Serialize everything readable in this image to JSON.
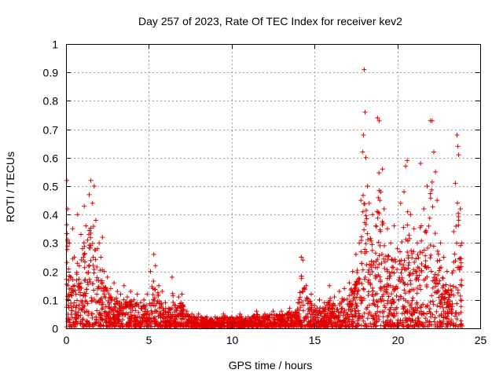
{
  "chart_data": {
    "type": "scatter",
    "title": "Day 257 of 2023, Rate Of TEC Index for receiver kev2",
    "xlabel": "GPS time / hours",
    "ylabel": "ROTI / TECUs",
    "xlim": [
      0,
      25
    ],
    "ylim": [
      0,
      1
    ],
    "xticks": [
      "0",
      "5",
      "10",
      "15",
      "20",
      "25"
    ],
    "yticks": [
      "0",
      "0.1",
      "0.2",
      "0.3",
      "0.4",
      "0.5",
      "0.6",
      "0.7",
      "0.8",
      "0.9",
      "1"
    ],
    "grid": true,
    "marker": "+",
    "series": [
      {
        "name": "kev2",
        "color": "#e00000",
        "points": [
          [
            0.05,
            0.52
          ],
          [
            0.1,
            0.42
          ],
          [
            0.2,
            0.3
          ],
          [
            0.3,
            0.18
          ],
          [
            0.4,
            0.35
          ],
          [
            0.5,
            0.25
          ],
          [
            0.6,
            0.12
          ],
          [
            0.7,
            0.4
          ],
          [
            0.8,
            0.22
          ],
          [
            0.9,
            0.33
          ],
          [
            1.0,
            0.28
          ],
          [
            1.1,
            0.43
          ],
          [
            1.2,
            0.36
          ],
          [
            1.3,
            0.31
          ],
          [
            1.4,
            0.47
          ],
          [
            1.5,
            0.52
          ],
          [
            1.6,
            0.44
          ],
          [
            1.7,
            0.5
          ],
          [
            1.8,
            0.38
          ],
          [
            1.9,
            0.28
          ],
          [
            2.0,
            0.3
          ],
          [
            2.1,
            0.25
          ],
          [
            2.2,
            0.32
          ],
          [
            2.3,
            0.2
          ],
          [
            2.5,
            0.18
          ],
          [
            2.7,
            0.14
          ],
          [
            2.9,
            0.16
          ],
          [
            3.1,
            0.13
          ],
          [
            3.3,
            0.12
          ],
          [
            3.5,
            0.15
          ],
          [
            3.7,
            0.11
          ],
          [
            3.9,
            0.13
          ],
          [
            4.1,
            0.1
          ],
          [
            4.3,
            0.12
          ],
          [
            4.5,
            0.09
          ],
          [
            4.7,
            0.1
          ],
          [
            4.9,
            0.12
          ],
          [
            5.1,
            0.2
          ],
          [
            5.3,
            0.26
          ],
          [
            5.4,
            0.22
          ],
          [
            5.6,
            0.15
          ],
          [
            5.8,
            0.13
          ],
          [
            6.0,
            0.09
          ],
          [
            6.2,
            0.07
          ],
          [
            6.4,
            0.18
          ],
          [
            6.6,
            0.08
          ],
          [
            6.8,
            0.11
          ],
          [
            7.0,
            0.12
          ],
          [
            7.3,
            0.06
          ],
          [
            7.6,
            0.05
          ],
          [
            8.0,
            0.05
          ],
          [
            8.5,
            0.04
          ],
          [
            9.0,
            0.04
          ],
          [
            9.5,
            0.05
          ],
          [
            10.0,
            0.04
          ],
          [
            10.5,
            0.05
          ],
          [
            11.0,
            0.04
          ],
          [
            11.5,
            0.06
          ],
          [
            12.0,
            0.05
          ],
          [
            12.5,
            0.06
          ],
          [
            13.0,
            0.06
          ],
          [
            13.5,
            0.07
          ],
          [
            14.0,
            0.09
          ],
          [
            14.2,
            0.25
          ],
          [
            14.3,
            0.24
          ],
          [
            14.5,
            0.15
          ],
          [
            14.8,
            0.12
          ],
          [
            15.0,
            0.08
          ],
          [
            15.3,
            0.1
          ],
          [
            15.6,
            0.09
          ],
          [
            15.9,
            0.15
          ],
          [
            16.2,
            0.11
          ],
          [
            16.5,
            0.13
          ],
          [
            16.8,
            0.14
          ],
          [
            17.1,
            0.16
          ],
          [
            17.3,
            0.2
          ],
          [
            17.5,
            0.26
          ],
          [
            17.7,
            0.3
          ],
          [
            17.8,
            0.45
          ],
          [
            17.9,
            0.62
          ],
          [
            17.95,
            0.68
          ],
          [
            18.0,
            0.91
          ],
          [
            18.05,
            0.76
          ],
          [
            18.1,
            0.6
          ],
          [
            18.2,
            0.5
          ],
          [
            18.3,
            0.44
          ],
          [
            18.5,
            0.4
          ],
          [
            18.7,
            0.36
          ],
          [
            18.8,
            0.74
          ],
          [
            18.9,
            0.73
          ],
          [
            19.0,
            0.48
          ],
          [
            19.1,
            0.56
          ],
          [
            19.2,
            0.42
          ],
          [
            19.4,
            0.35
          ],
          [
            19.6,
            0.3
          ],
          [
            19.8,
            0.36
          ],
          [
            20.0,
            0.28
          ],
          [
            20.2,
            0.44
          ],
          [
            20.4,
            0.48
          ],
          [
            20.5,
            0.57
          ],
          [
            20.6,
            0.59
          ],
          [
            20.8,
            0.4
          ],
          [
            21.0,
            0.35
          ],
          [
            21.2,
            0.3
          ],
          [
            21.4,
            0.58
          ],
          [
            21.6,
            0.42
          ],
          [
            21.8,
            0.5
          ],
          [
            22.0,
            0.73
          ],
          [
            22.1,
            0.73
          ],
          [
            22.2,
            0.62
          ],
          [
            22.3,
            0.55
          ],
          [
            22.4,
            0.45
          ],
          [
            22.6,
            0.3
          ],
          [
            22.8,
            0.25
          ],
          [
            23.0,
            0.2
          ],
          [
            23.2,
            0.15
          ],
          [
            23.4,
            0.34
          ],
          [
            23.5,
            0.51
          ],
          [
            23.6,
            0.68
          ],
          [
            23.65,
            0.64
          ],
          [
            23.7,
            0.61
          ],
          [
            23.8,
            0.42
          ],
          [
            23.9,
            0.3
          ]
        ]
      }
    ],
    "noise_seed": 257
  }
}
